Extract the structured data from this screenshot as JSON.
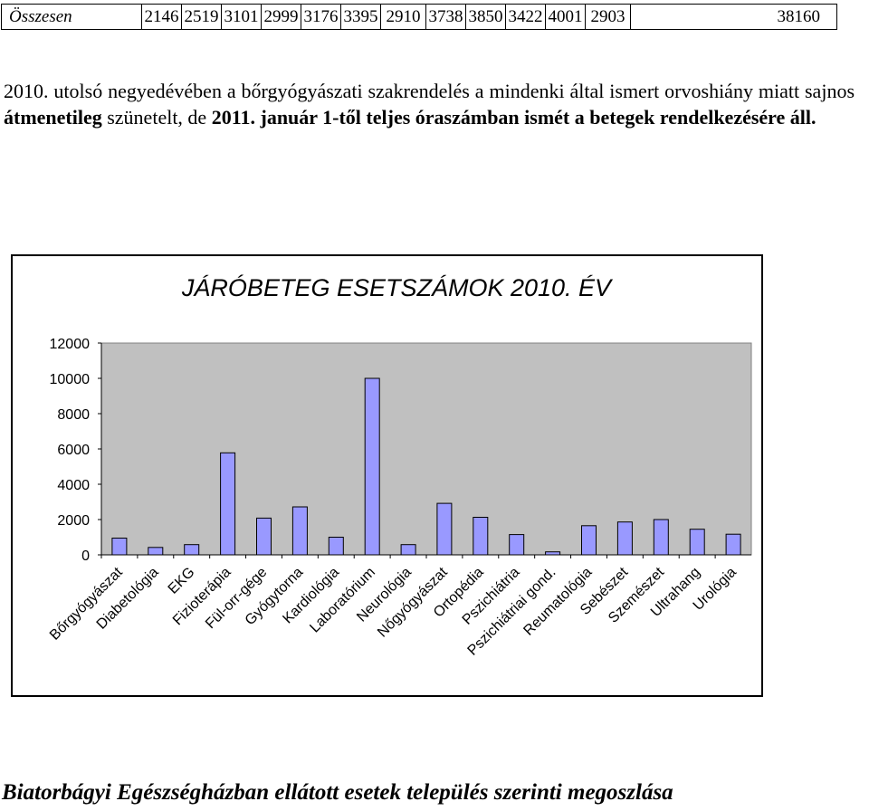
{
  "summary_table": {
    "label": "Összesen",
    "values": [
      "2146",
      "2519",
      "3101",
      "2999",
      "3176",
      "3395",
      "2910",
      "3738",
      "3850",
      "3422",
      "4001",
      "2903"
    ],
    "total": "38160"
  },
  "paragraph": {
    "part1": "2010. utolsó negyedévében a bőrgyógyászati szakrendelés a mindenki által ismert orvoshiány miatt sajnos ",
    "bold1": "átmenetileg",
    "part2": " szünetelt, de ",
    "bold2": "2011. január 1-től teljes óraszámban ismét a betegek rendelkezésére áll."
  },
  "chart_data": {
    "type": "bar",
    "title": "JÁRÓBETEG ESETSZÁMOK 2010. ÉV",
    "xlabel": "",
    "ylabel": "",
    "ylim": [
      0,
      12000
    ],
    "yticks": [
      "0",
      "2000",
      "4000",
      "6000",
      "8000",
      "10000",
      "12000"
    ],
    "grid": false,
    "legend": "none",
    "categories": [
      "Bőrgyógyászat",
      "Diabetológia",
      "EKG",
      "Fizioterápia",
      "Fül-orr-gége",
      "Gyógytorna",
      "Kardiológia",
      "Laboratórium",
      "Neurológia",
      "Nőgyógyászat",
      "Ortopédia",
      "Pszichiátria",
      "Pszichiátriai gond.",
      "Reumatológia",
      "Sebészet",
      "Szemészet",
      "Ultrahang",
      "Urológia"
    ],
    "values": [
      950,
      420,
      580,
      5780,
      2080,
      2720,
      1000,
      10000,
      580,
      2920,
      2130,
      1150,
      170,
      1650,
      1860,
      2000,
      1450,
      1170
    ],
    "bar_color": "#9999ff",
    "plot_bg": "#c0c0c0"
  },
  "footer_heading": "Biatorbágyi Egészségházban ellátott  esetek település szerinti megoszlása"
}
